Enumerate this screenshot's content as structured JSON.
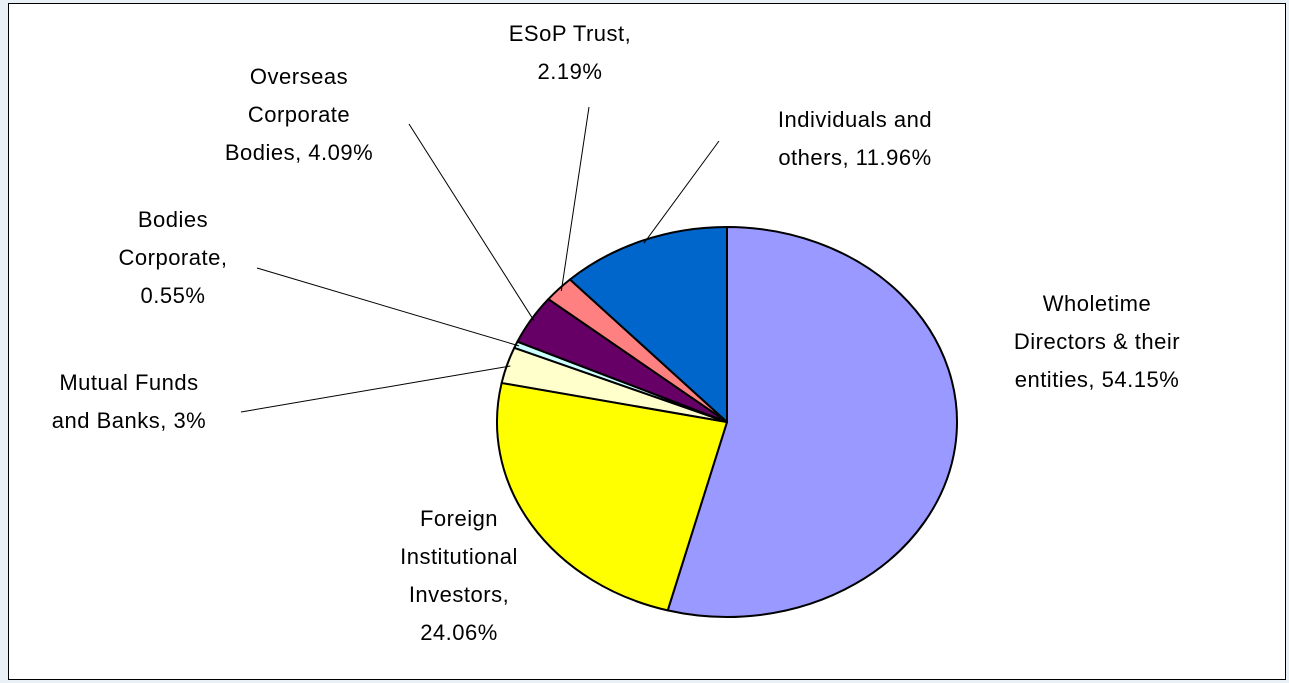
{
  "chart_data": {
    "type": "pie",
    "title": "",
    "slices": [
      {
        "label_lines": [
          "Wholetime",
          "Directors & their",
          "entities, 54.15%"
        ],
        "value": 54.15,
        "color": "#9999ff"
      },
      {
        "label_lines": [
          "Foreign",
          "Institutional",
          "Investors,",
          "24.06%"
        ],
        "value": 24.06,
        "color": "#ffff00"
      },
      {
        "label_lines": [
          "Mutual Funds",
          "and Banks, 3%"
        ],
        "value": 3.0,
        "color": "#ffffcc"
      },
      {
        "label_lines": [
          "Bodies",
          "Corporate,",
          "0.55%"
        ],
        "value": 0.55,
        "color": "#ccffff"
      },
      {
        "label_lines": [
          "Overseas",
          "Corporate",
          "Bodies, 4.09%"
        ],
        "value": 4.09,
        "color": "#660066"
      },
      {
        "label_lines": [
          "ESoP Trust,",
          "2.19%"
        ],
        "value": 2.19,
        "color": "#ff8080"
      },
      {
        "label_lines": [
          "Individuals and",
          "others, 11.96%"
        ],
        "value": 11.96,
        "color": "#0066cc"
      }
    ]
  }
}
